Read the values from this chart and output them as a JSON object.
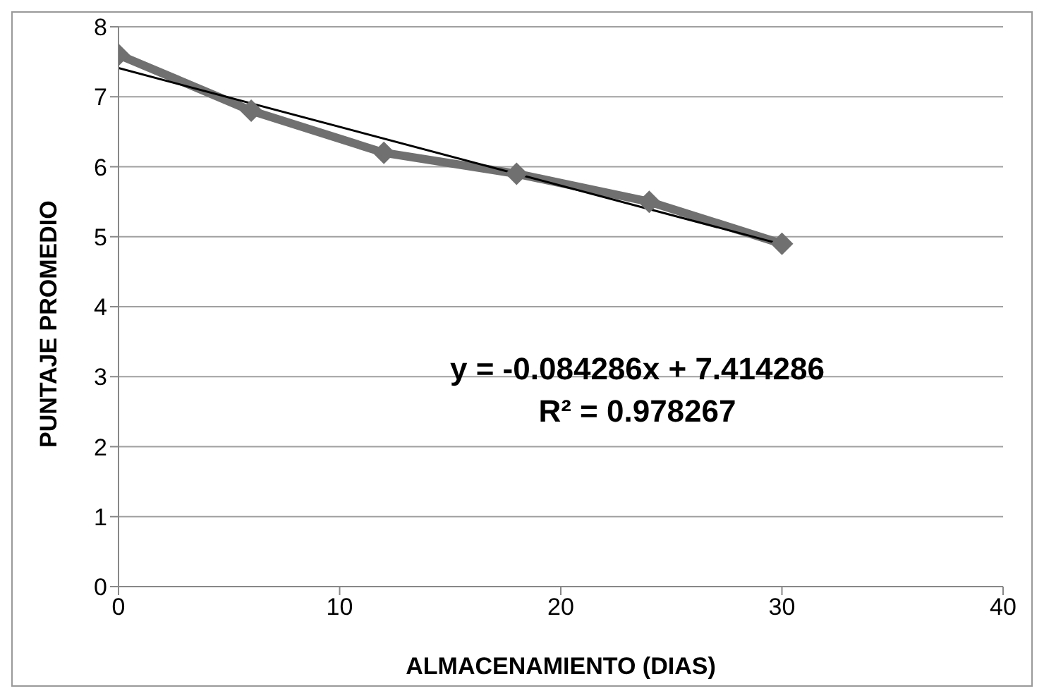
{
  "chart_data": {
    "type": "line",
    "xlabel": "ALMACENAMIENTO (DIAS)",
    "ylabel": "PUNTAJE PROMEDIO",
    "series": [
      {
        "color": "#707070",
        "x": [
          0,
          6,
          12,
          18,
          24,
          30
        ],
        "values": [
          7.6,
          6.8,
          6.2,
          5.9,
          5.5,
          4.9
        ],
        "marker": "diamond"
      },
      {
        "color": "#000000",
        "x": [
          0,
          30
        ],
        "values": [
          7.41,
          4.89
        ],
        "marker": "none"
      }
    ],
    "xlim": [
      0,
      40
    ],
    "xticks": [
      0,
      10,
      20,
      30,
      40
    ],
    "ylim": [
      0,
      8
    ],
    "yticks": [
      0,
      1,
      2,
      3,
      4,
      5,
      6,
      7,
      8
    ],
    "grid": "y",
    "line_style": "solid",
    "annotations": [
      "y = -0.084286x + 7.414286",
      "R² = 0.978267"
    ]
  }
}
